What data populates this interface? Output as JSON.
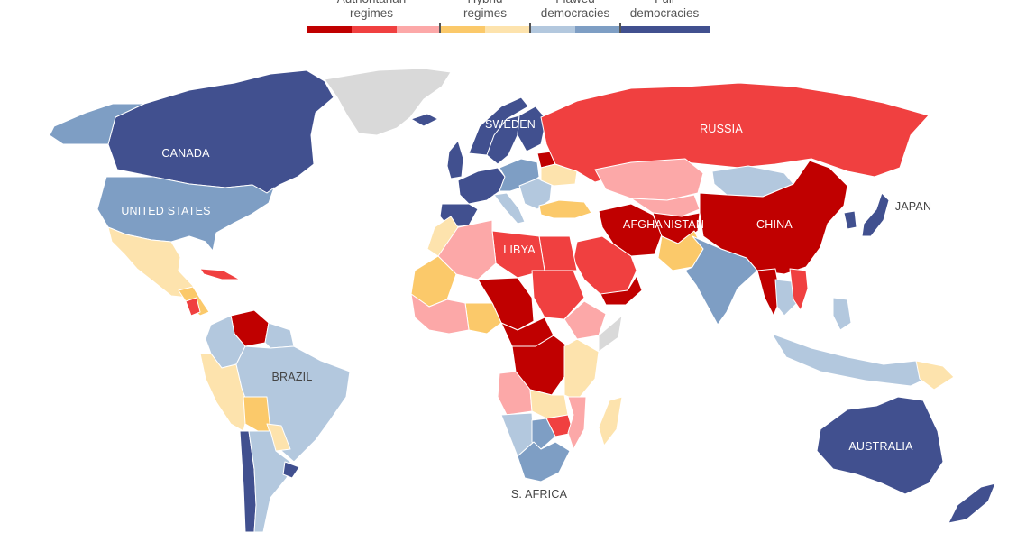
{
  "legend": {
    "categories": [
      {
        "label": "Authoritarian\nregimes",
        "colors": [
          "#c00000",
          "#f04040",
          "#fca8a8"
        ]
      },
      {
        "label": "Hybrid\nregimes",
        "colors": [
          "#fbc96a",
          "#fde3ad"
        ]
      },
      {
        "label": "Flawed\ndemocracies",
        "colors": [
          "#b3c8de",
          "#7e9ec4"
        ]
      },
      {
        "label": "Full\ndemocracies",
        "colors": [
          "#41508f"
        ]
      }
    ]
  },
  "colors": {
    "authoritarian_dark": "#c00000",
    "authoritarian_mid": "#f04040",
    "authoritarian_light": "#fca8a8",
    "hybrid_dark": "#fbc96a",
    "hybrid_light": "#fde3ad",
    "flawed_light": "#b3c8de",
    "flawed_dark": "#7e9ec4",
    "full": "#41508f",
    "no_data": "#d9d9d9"
  },
  "labels": {
    "canada": "CANADA",
    "united_states": "UNITED STATES",
    "sweden": "SWEDEN",
    "russia": "RUSSIA",
    "japan": "JAPAN",
    "china": "CHINA",
    "afghanistan": "AFGHANISTAN",
    "libya": "LIBYA",
    "brazil": "BRAZIL",
    "australia": "AUSTRALIA",
    "south_africa": "S. AFRICA"
  }
}
